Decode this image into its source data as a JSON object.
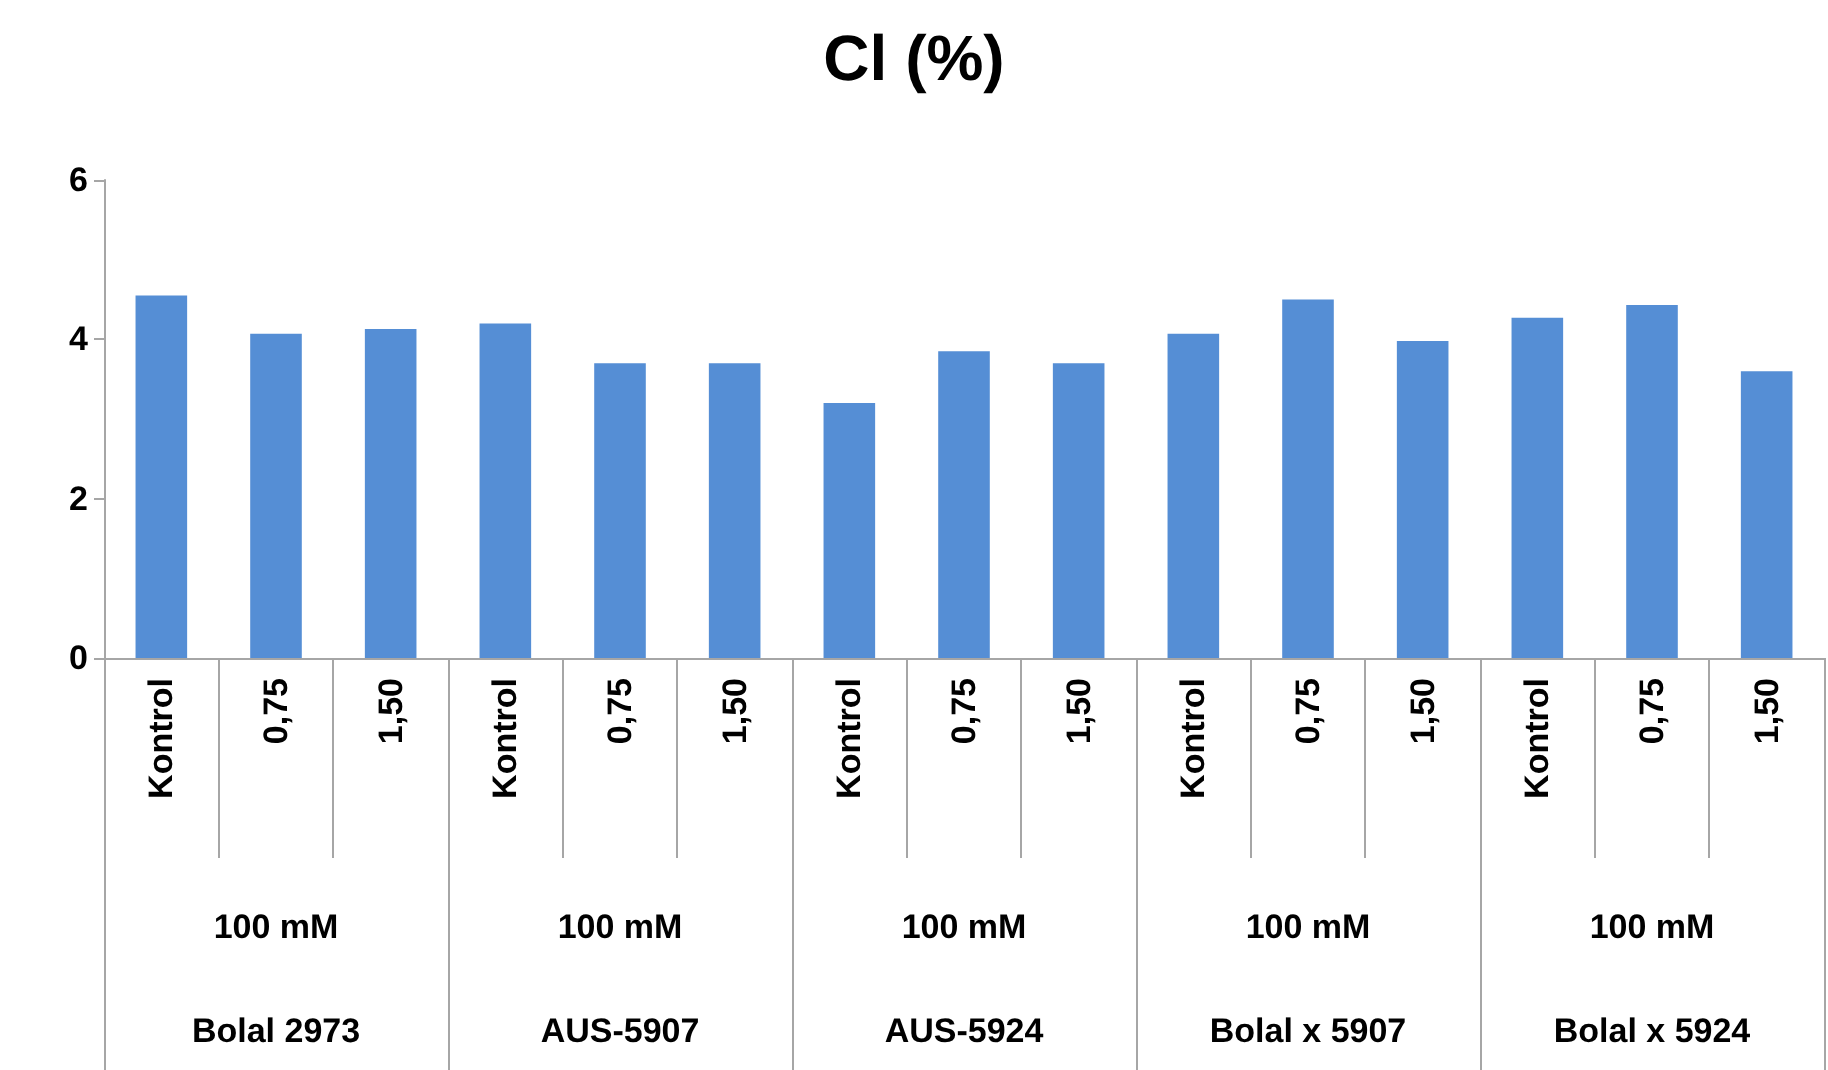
{
  "chart_data": {
    "type": "bar",
    "title": "Cl (%)",
    "categories": [
      "Kontrol",
      "0,75",
      "1,50",
      "Kontrol",
      "0,75",
      "1,50",
      "Kontrol",
      "0,75",
      "1,50",
      "Kontrol",
      "0,75",
      "1,50",
      "Kontrol",
      "0,75",
      "1,50"
    ],
    "values": [
      4.55,
      4.07,
      4.13,
      4.2,
      3.7,
      3.7,
      3.2,
      3.85,
      3.7,
      4.07,
      4.5,
      3.98,
      4.27,
      4.43,
      3.6
    ],
    "color": "#558ed5",
    "ylim": [
      0,
      6
    ],
    "yticks": [
      0,
      2,
      4,
      6
    ],
    "annotations": [
      "100 mM",
      "Bolal 2973",
      "100 mM",
      "AUS-5907",
      "100 mM",
      "AUS-5924",
      "100 mM",
      "Bolal x 5907",
      "100 mM",
      "Bolal x 5924"
    ]
  }
}
